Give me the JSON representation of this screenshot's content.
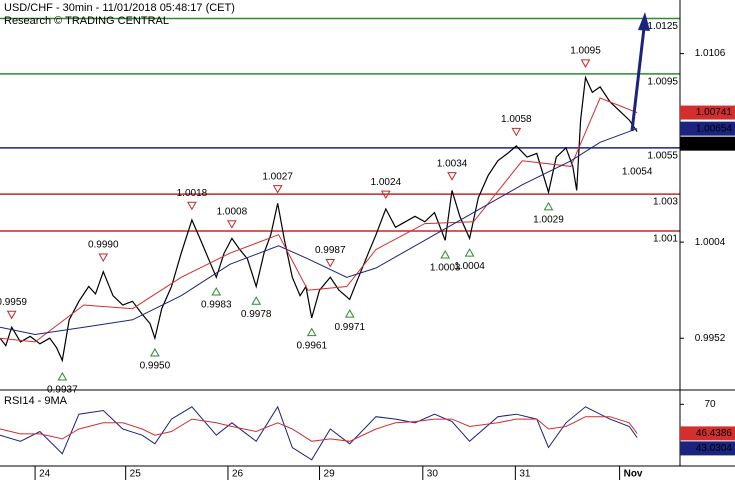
{
  "chart_data": [
    {
      "type": "line",
      "title": "USD/CHF - 30min - 11/01/2018 05:48:17 (CET)",
      "subtitle": "Research © TRADING CENTRAL",
      "xlim": [
        0.64,
        7.62
      ],
      "xticks": [
        {
          "value": 1,
          "label": "24"
        },
        {
          "value": 1.93,
          "label": "25"
        },
        {
          "value": 2.98,
          "label": "26"
        },
        {
          "value": 3.92,
          "label": "29"
        },
        {
          "value": 4.98,
          "label": "30"
        },
        {
          "value": 5.93,
          "label": "31"
        },
        {
          "value": 7,
          "label": "Nov"
        }
      ],
      "ylim": [
        0.9924,
        1.0135
      ],
      "yticks": [
        1.0106,
        1.0004,
        0.9952
      ],
      "series": [
        {
          "color": "#000000",
          "x": [
            0.64,
            0.7,
            0.76,
            0.85,
            0.95,
            1.05,
            1.15,
            1.22,
            1.28,
            1.35,
            1.45,
            1.55,
            1.62,
            1.7,
            1.8,
            1.9,
            2.0,
            2.1,
            2.18,
            2.23,
            2.3,
            2.4,
            2.5,
            2.61,
            2.7,
            2.78,
            2.86,
            2.94,
            3.02,
            3.1,
            3.18,
            3.27,
            3.35,
            3.42,
            3.49,
            3.56,
            3.64,
            3.72,
            3.78,
            3.84,
            3.92,
            4.03,
            4.12,
            4.23,
            4.32,
            4.42,
            4.5,
            4.6,
            4.7,
            4.8,
            4.9,
            5.0,
            5.1,
            5.21,
            5.28,
            5.36,
            5.46,
            5.55,
            5.65,
            5.75,
            5.85,
            5.94,
            6.05,
            6.15,
            6.27,
            6.35,
            6.45,
            6.52,
            6.56,
            6.6,
            6.65,
            6.72,
            6.8,
            6.9,
            7.0,
            7.1,
            7.18
          ],
          "values": [
            0.9952,
            0.9948,
            0.9958,
            0.995,
            0.9953,
            0.9949,
            0.9952,
            0.9947,
            0.994,
            0.9962,
            0.9972,
            0.998,
            0.9976,
            0.9988,
            0.9975,
            0.997,
            0.9972,
            0.9965,
            0.996,
            0.9952,
            0.9968,
            0.998,
            0.9998,
            1.0016,
            1.0005,
            0.9995,
            0.9985,
            0.9998,
            1.0006,
            1.0,
            0.9995,
            0.998,
            0.9998,
            1.0008,
            1.0025,
            1.0005,
            0.9985,
            0.9975,
            0.998,
            0.9963,
            0.9978,
            0.9985,
            0.9978,
            0.9973,
            0.9985,
            0.9998,
            1.0008,
            1.0022,
            1.0012,
            1.0015,
            1.0018,
            1.0015,
            1.002,
            1.0005,
            1.0032,
            1.0018,
            1.0006,
            1.0028,
            1.004,
            1.0048,
            1.0052,
            1.0056,
            1.005,
            1.0052,
            1.0031,
            1.005,
            1.0055,
            1.0045,
            1.0032,
            1.007,
            1.0093,
            1.0085,
            1.0088,
            1.008,
            1.0075,
            1.007,
            1.00638
          ]
        },
        {
          "color": "#d32f2f",
          "x": [
            0.64,
            1.0,
            1.5,
            2.0,
            2.5,
            3.0,
            3.5,
            3.8,
            4.2,
            4.5,
            5.0,
            5.5,
            6.0,
            6.5,
            6.8,
            7.18
          ],
          "values": [
            0.9952,
            0.995,
            0.997,
            0.9968,
            0.9985,
            0.9998,
            1.0008,
            0.9978,
            0.998,
            1.0,
            1.0014,
            1.0015,
            1.0048,
            1.0045,
            1.0082,
            1.00741
          ]
        },
        {
          "color": "#1a237e",
          "x": [
            0.64,
            1.0,
            1.5,
            2.0,
            2.5,
            3.0,
            3.5,
            3.8,
            4.2,
            4.5,
            5.0,
            5.5,
            6.0,
            6.5,
            6.8,
            7.18
          ],
          "values": [
            0.9958,
            0.9954,
            0.9958,
            0.9962,
            0.9975,
            0.9992,
            1.0002,
            0.9995,
            0.9985,
            0.999,
            1.0005,
            1.002,
            1.0035,
            1.0048,
            1.0058,
            1.00654
          ]
        }
      ],
      "levels": [
        {
          "value": 1.0125,
          "color": "#2e8b2e"
        },
        {
          "value": 1.0095,
          "color": "#2e8b2e"
        },
        {
          "value": 1.0055,
          "color": "#1a237e"
        },
        {
          "value": 1.003,
          "color": "#c62828"
        },
        {
          "value": 1.001,
          "color": "#c62828"
        }
      ],
      "annotations": [
        {
          "x": 0.76,
          "value": 0.9959,
          "kind": "high"
        },
        {
          "x": 1.28,
          "value": 0.9937,
          "kind": "low"
        },
        {
          "x": 1.7,
          "value": 0.999,
          "label": "0.9990",
          "kind": "high"
        },
        {
          "x": 2.23,
          "value": 0.995,
          "label": "0.9950",
          "kind": "low"
        },
        {
          "x": 2.61,
          "value": 1.0018,
          "kind": "high"
        },
        {
          "x": 2.86,
          "value": 0.9983,
          "kind": "low"
        },
        {
          "x": 3.02,
          "value": 1.0008,
          "kind": "high"
        },
        {
          "x": 3.27,
          "value": 0.9978,
          "kind": "low"
        },
        {
          "x": 3.49,
          "value": 1.0027,
          "kind": "high"
        },
        {
          "x": 3.84,
          "value": 0.9961,
          "kind": "low"
        },
        {
          "x": 4.03,
          "value": 0.9987,
          "kind": "high"
        },
        {
          "x": 4.23,
          "value": 0.9971,
          "kind": "low"
        },
        {
          "x": 4.6,
          "value": 1.0024,
          "kind": "high"
        },
        {
          "x": 5.21,
          "value": 1.0003,
          "kind": "low"
        },
        {
          "x": 5.28,
          "value": 1.0034,
          "kind": "high"
        },
        {
          "x": 5.46,
          "value": 1.0004,
          "kind": "low"
        },
        {
          "x": 5.94,
          "value": 1.0058,
          "kind": "high"
        },
        {
          "x": 6.27,
          "value": 1.0029,
          "kind": "low"
        },
        {
          "x": 6.65,
          "value": 1.0095,
          "kind": "high"
        },
        {
          "x": 7.18,
          "value": 1.0054,
          "kind": "label"
        }
      ]
    },
    {
      "type": "line",
      "title": "RSI14 - 9MA",
      "xlim": [
        0.64,
        7.62
      ],
      "ylim": [
        20,
        80
      ],
      "yticks": [
        70
      ],
      "series": [
        {
          "color": "#1a237e",
          "x": [
            0.64,
            0.85,
            1.05,
            1.28,
            1.45,
            1.7,
            1.9,
            2.1,
            2.23,
            2.4,
            2.61,
            2.86,
            3.02,
            3.27,
            3.49,
            3.64,
            3.84,
            4.03,
            4.23,
            4.5,
            4.7,
            4.9,
            5.1,
            5.28,
            5.46,
            5.75,
            5.94,
            6.15,
            6.27,
            6.45,
            6.65,
            6.9,
            7.1,
            7.18
          ],
          "values": [
            45,
            40,
            48,
            30,
            62,
            65,
            50,
            45,
            38,
            58,
            68,
            45,
            55,
            40,
            68,
            35,
            25,
            50,
            38,
            60,
            58,
            55,
            62,
            56,
            40,
            60,
            62,
            58,
            35,
            55,
            68,
            58,
            52,
            43.0304
          ]
        },
        {
          "color": "#d32f2f",
          "x": [
            0.64,
            0.85,
            1.05,
            1.28,
            1.45,
            1.7,
            1.9,
            2.1,
            2.23,
            2.4,
            2.61,
            2.86,
            3.02,
            3.27,
            3.49,
            3.64,
            3.84,
            4.03,
            4.23,
            4.5,
            4.7,
            4.9,
            5.1,
            5.28,
            5.46,
            5.75,
            5.94,
            6.15,
            6.27,
            6.45,
            6.65,
            6.9,
            7.1,
            7.18
          ],
          "values": [
            50,
            46,
            46,
            42,
            50,
            55,
            55,
            50,
            45,
            48,
            58,
            55,
            52,
            48,
            55,
            50,
            40,
            42,
            40,
            50,
            55,
            56,
            58,
            58,
            52,
            55,
            58,
            58,
            50,
            52,
            60,
            60,
            55,
            46.4386
          ]
        }
      ]
    }
  ]
}
